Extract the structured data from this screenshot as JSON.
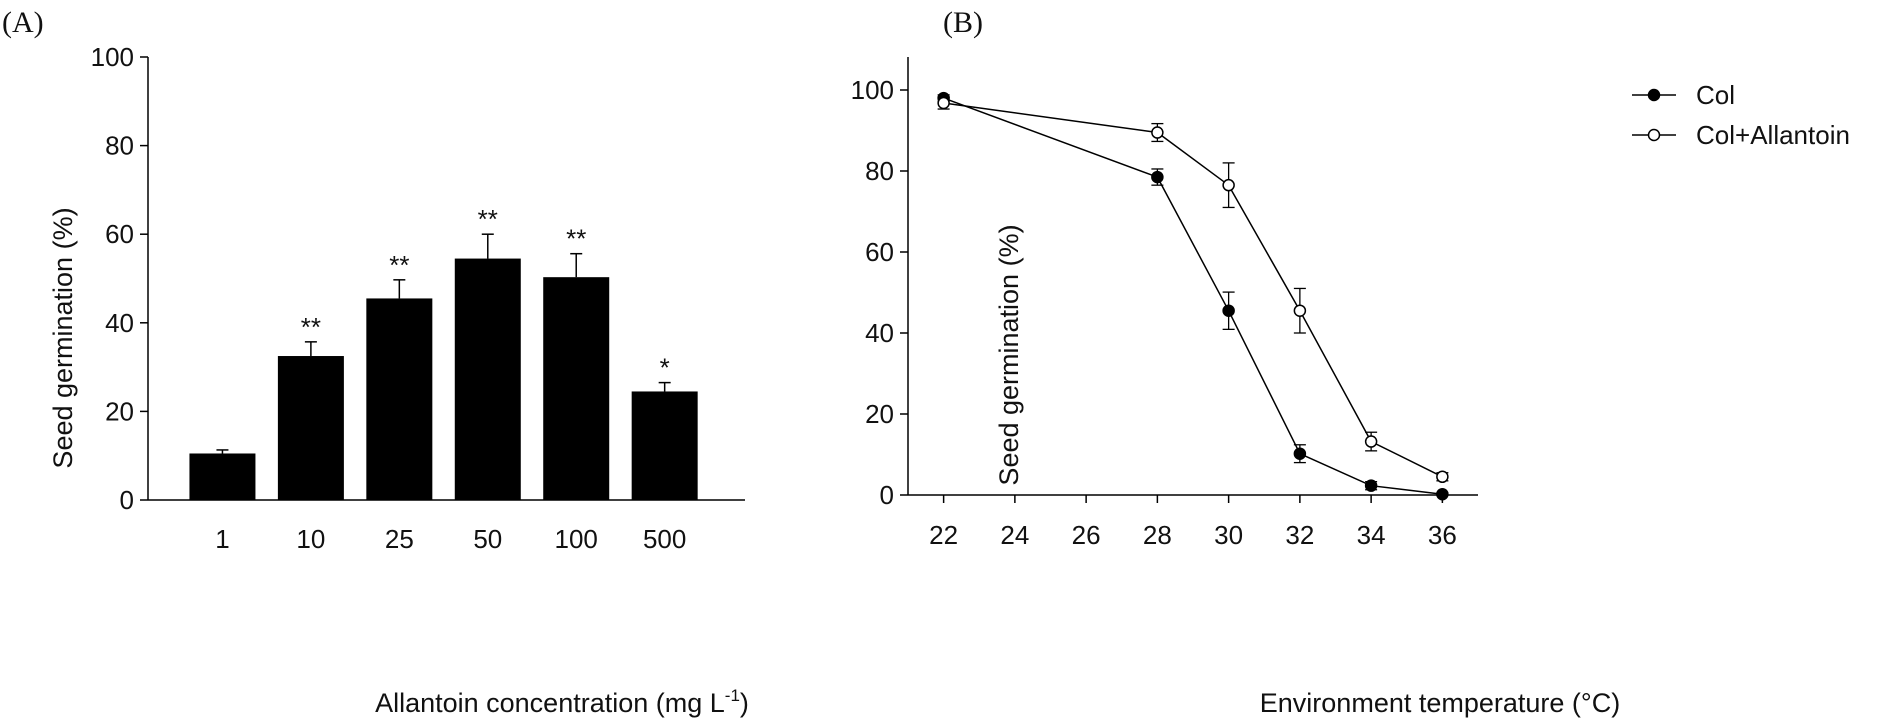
{
  "chart_data": [
    {
      "panel_label": "(A)",
      "type": "bar",
      "categories": [
        "1",
        "10",
        "25",
        "50",
        "100",
        "500"
      ],
      "values": [
        10.5,
        32.5,
        45.5,
        54.5,
        50.3,
        24.5
      ],
      "errors": [
        0.8,
        3.2,
        4.2,
        5.5,
        5.3,
        2.0
      ],
      "significance": [
        "",
        "**",
        "**",
        "**",
        "**",
        "*"
      ],
      "xlabel": "Allantoin concentration (mg L",
      "xlabel_sup": "-1",
      "xlabel_tail": ")",
      "ylabel": "Seed germination (%)",
      "ylim": [
        0,
        100
      ],
      "yticks": [
        "0",
        "20",
        "40",
        "60",
        "80",
        "100"
      ],
      "bar_color": "#000000"
    },
    {
      "panel_label": "(B)",
      "type": "line",
      "xlabel": "Environment temperature (°C)",
      "ylabel": "Seed germination (%)",
      "xlim": [
        21,
        37
      ],
      "ylim": [
        0,
        100
      ],
      "xticks": [
        "22",
        "24",
        "26",
        "28",
        "30",
        "32",
        "34",
        "36"
      ],
      "yticks": [
        "0",
        "20",
        "40",
        "60",
        "80",
        "100"
      ],
      "legend_position": "top-right",
      "series": [
        {
          "name": "Col",
          "marker": "filled-circle",
          "x": [
            22,
            28,
            30,
            32,
            34,
            36
          ],
          "y": [
            98,
            78.5,
            45.5,
            10.2,
            2.3,
            0.2
          ],
          "errors": [
            0.8,
            2.0,
            4.6,
            2.2,
            1.0,
            0.3
          ]
        },
        {
          "name": "Col+Allantoin",
          "marker": "open-circle",
          "x": [
            22,
            28,
            30,
            32,
            34,
            36
          ],
          "y": [
            96.8,
            89.5,
            76.5,
            45.5,
            13.2,
            4.5
          ],
          "errors": [
            1.5,
            2.2,
            5.5,
            5.5,
            2.3,
            1.0
          ]
        }
      ]
    }
  ]
}
